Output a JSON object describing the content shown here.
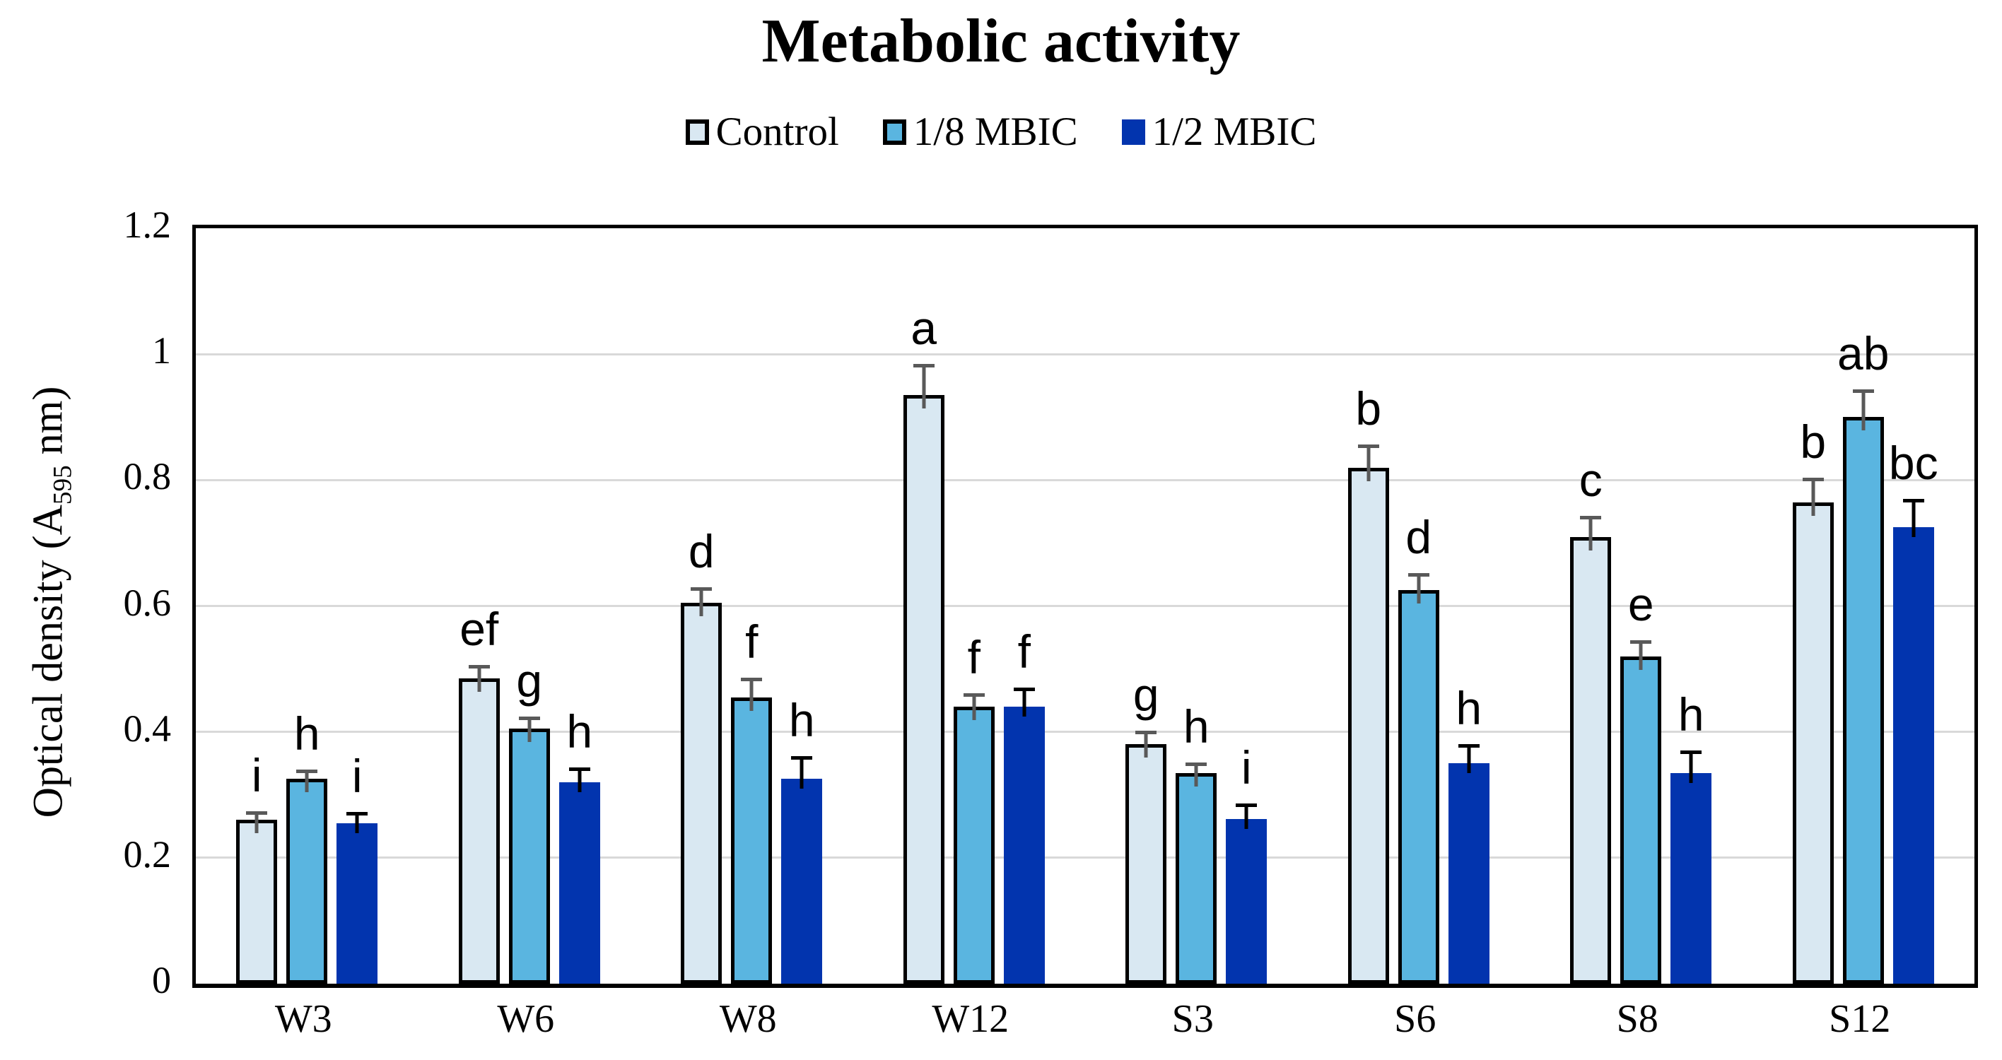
{
  "title": "Metabolic activity",
  "legend": [
    {
      "label": "Control",
      "fill": "#D9E8F2",
      "border": "#000000"
    },
    {
      "label": "1/8 MBIC",
      "fill": "#5AB5E0",
      "border": "#000000"
    },
    {
      "label": "1/2 MBIC",
      "fill": "#0234AE",
      "border": null
    }
  ],
  "y_axis": {
    "label_prefix": "Optical density (A",
    "label_sub": "595",
    "label_suffix": " nm)",
    "max": 1.2,
    "ticks": [
      {
        "value": 0,
        "label": "0"
      },
      {
        "value": 0.2,
        "label": "0.2"
      },
      {
        "value": 0.4,
        "label": "0.4"
      },
      {
        "value": 0.6,
        "label": "0.6"
      },
      {
        "value": 0.8,
        "label": "0.8"
      },
      {
        "value": 1,
        "label": "1"
      },
      {
        "value": 1.2,
        "label": "1.2"
      }
    ]
  },
  "chart_data": {
    "type": "bar",
    "title": "Metabolic activity",
    "xlabel": "",
    "ylabel": "Optical density (A595 nm)",
    "ylim": [
      0,
      1.2
    ],
    "yticks": [
      0,
      0.2,
      0.4,
      0.6,
      0.8,
      1,
      1.2
    ],
    "grid": true,
    "legend_position": "top",
    "error_bars": "upper",
    "categories": [
      "W3",
      "W6",
      "W8",
      "W12",
      "S3",
      "S6",
      "S8",
      "S12"
    ],
    "series": [
      {
        "name": "Control",
        "fill": "#D9E8F2",
        "border": "#000000",
        "error_color": "#595959",
        "values": [
          0.26,
          0.485,
          0.605,
          0.935,
          0.38,
          0.82,
          0.71,
          0.765
        ],
        "errors": [
          0.015,
          0.022,
          0.026,
          0.05,
          0.022,
          0.038,
          0.035,
          0.04
        ],
        "letters": [
          "i",
          "ef",
          "d",
          "a",
          "g",
          "b",
          "c",
          "b"
        ]
      },
      {
        "name": "1/8 MBIC",
        "fill": "#5AB5E0",
        "border": "#000000",
        "error_color": "#595959",
        "values": [
          0.325,
          0.405,
          0.455,
          0.44,
          0.335,
          0.625,
          0.52,
          0.9
        ],
        "errors": [
          0.016,
          0.02,
          0.032,
          0.023,
          0.018,
          0.028,
          0.027,
          0.045
        ],
        "letters": [
          "h",
          "g",
          "f",
          "f",
          "h",
          "d",
          "e",
          "ab"
        ]
      },
      {
        "name": "1/2 MBIC",
        "fill": "#0234AE",
        "border": null,
        "error_color": "#000000",
        "values": [
          0.255,
          0.32,
          0.325,
          0.44,
          0.262,
          0.35,
          0.335,
          0.725
        ],
        "errors": [
          0.014,
          0.019,
          0.031,
          0.026,
          0.02,
          0.026,
          0.031,
          0.04
        ],
        "letters": [
          "i",
          "h",
          "h",
          "f",
          "i",
          "h",
          "h",
          "bc"
        ]
      }
    ]
  }
}
